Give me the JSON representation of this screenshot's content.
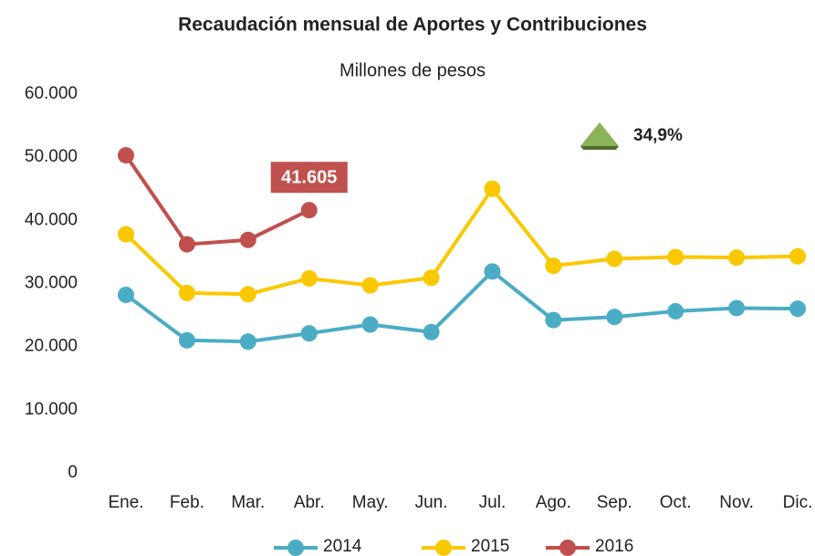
{
  "chart_data": {
    "type": "line",
    "title": "Recaudación mensual de Aportes y Contribuciones",
    "subtitle": "Millones de pesos",
    "annotation": "34,9%",
    "categories": [
      "Ene.",
      "Feb.",
      "Mar.",
      "Abr.",
      "May.",
      "Jun.",
      "Jul.",
      "Ago.",
      "Sep.",
      "Oct.",
      "Nov.",
      "Dic."
    ],
    "series": [
      {
        "name": "2014",
        "color": "#4bacc6",
        "values": [
          28200,
          21000,
          20800,
          22100,
          23500,
          22300,
          31900,
          24200,
          24700,
          25600,
          26100,
          26000
        ]
      },
      {
        "name": "2015",
        "color": "#fac800",
        "values": [
          37800,
          28500,
          28300,
          30800,
          29700,
          30900,
          45000,
          32800,
          33900,
          34200,
          34100,
          34300
        ]
      },
      {
        "name": "2016",
        "color": "#c0504d",
        "values": [
          50300,
          36200,
          36900,
          41605,
          null,
          null,
          null,
          null,
          null,
          null,
          null,
          null
        ],
        "value_labels": [
          null,
          null,
          null,
          "41.605",
          null,
          null,
          null,
          null,
          null,
          null,
          null,
          null
        ]
      }
    ],
    "ylim": [
      0,
      60000
    ],
    "yticks": [
      0,
      {
        "value": 10000,
        "label": "10.000"
      },
      {
        "value": 20000,
        "label": "20.000"
      },
      {
        "value": 30000,
        "label": "30.000"
      },
      {
        "value": 40000,
        "label": "40.000"
      },
      {
        "value": 50000,
        "label": "50.000"
      },
      {
        "value": 60000,
        "label": "60.000"
      }
    ],
    "grid": false,
    "legend": "bottom"
  }
}
